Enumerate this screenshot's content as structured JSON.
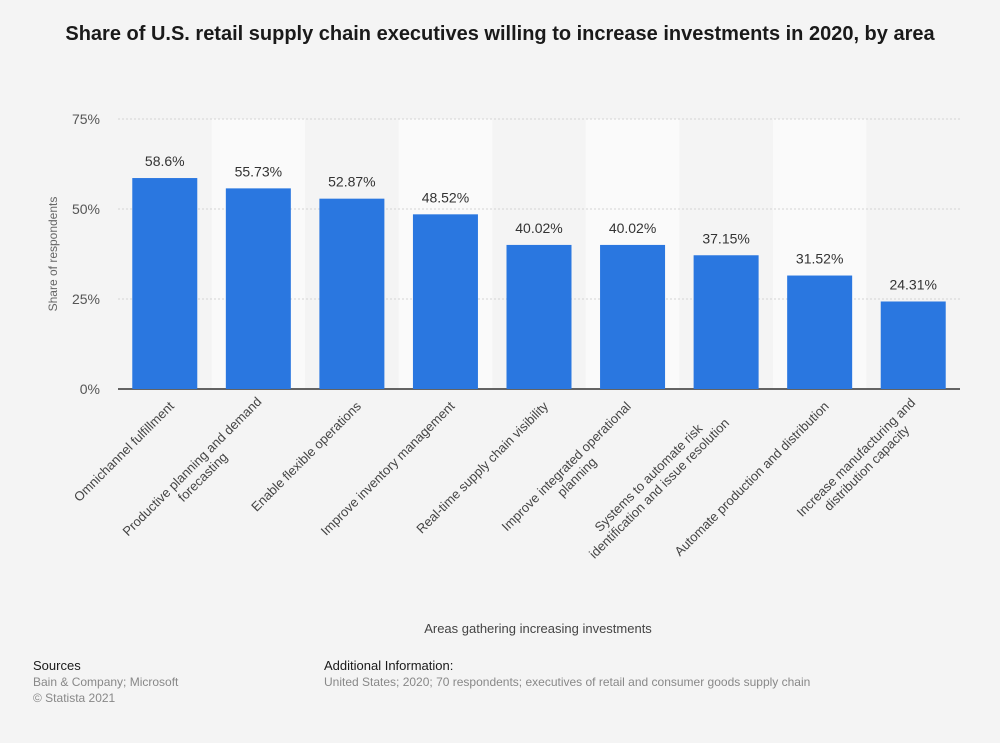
{
  "chart_data": {
    "type": "bar",
    "title": "Share of U.S. retail supply chain executives willing to increase investments in 2020, by area",
    "xlabel": "Areas gathering increasing investments",
    "ylabel": "Share of respondents",
    "ylim": [
      0,
      75
    ],
    "yticks": [
      0,
      25,
      50,
      75
    ],
    "ytick_labels": [
      "0%",
      "25%",
      "50%",
      "75%"
    ],
    "grid": true,
    "bar_color": "#2a77e0",
    "categories": [
      "Omnichannel fulfillment",
      "Productive planning and demand forecasting",
      "Enable flexible operations",
      "Improve inventory management",
      "Real-time supply chain visibility",
      "Improve integrated operational planning",
      "Systems to automate risk identification and issue resolution",
      "Automate production and distribution",
      "Increase manufacturing and distribution capacity"
    ],
    "category_lines": [
      [
        "Omnichannel fulfillment"
      ],
      [
        "Productive planning and demand",
        "forecasting"
      ],
      [
        "Enable flexible operations"
      ],
      [
        "Improve inventory management"
      ],
      [
        "Real-time supply chain visibility"
      ],
      [
        "Improve integrated operational",
        "planning"
      ],
      [
        "Systems to automate risk",
        "identification and issue resolution"
      ],
      [
        "Automate production and distribution"
      ],
      [
        "Increase manufacturing and",
        "distribution capacity"
      ]
    ],
    "values": [
      58.6,
      55.73,
      52.87,
      48.52,
      40.02,
      40.02,
      37.15,
      31.52,
      24.31
    ],
    "value_labels": [
      "58.6%",
      "55.73%",
      "52.87%",
      "48.52%",
      "40.02%",
      "40.02%",
      "37.15%",
      "31.52%",
      "24.31%"
    ]
  },
  "footer": {
    "sources_heading": "Sources",
    "sources_text": "Bain & Company; Microsoft",
    "copyright": "© Statista 2021",
    "info_heading": "Additional Information:",
    "info_text": "United States; 2020; 70 respondents; executives of retail and consumer goods supply chain"
  }
}
